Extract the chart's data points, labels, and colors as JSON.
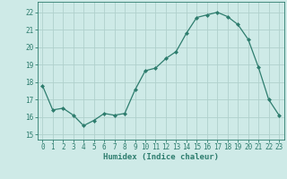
{
  "x": [
    0,
    1,
    2,
    3,
    4,
    5,
    6,
    7,
    8,
    9,
    10,
    11,
    12,
    13,
    14,
    15,
    16,
    17,
    18,
    19,
    20,
    21,
    22,
    23
  ],
  "y": [
    17.8,
    16.4,
    16.5,
    16.1,
    15.5,
    15.8,
    16.2,
    16.1,
    16.2,
    17.55,
    18.65,
    18.8,
    19.35,
    19.75,
    20.8,
    21.7,
    21.85,
    22.0,
    21.75,
    21.3,
    20.45,
    18.85,
    17.0,
    16.1
  ],
  "line_color": "#2e7d6e",
  "marker": "D",
  "marker_size": 2.0,
  "bg_color": "#ceeae7",
  "grid_color": "#b0d0cc",
  "xlabel": "Humidex (Indice chaleur)",
  "ylabel_ticks": [
    15,
    16,
    17,
    18,
    19,
    20,
    21,
    22
  ],
  "ylim": [
    14.7,
    22.6
  ],
  "xlim": [
    -0.5,
    23.5
  ],
  "tick_color": "#2e7d6e",
  "tick_fontsize": 5.5,
  "xlabel_fontsize": 6.5
}
